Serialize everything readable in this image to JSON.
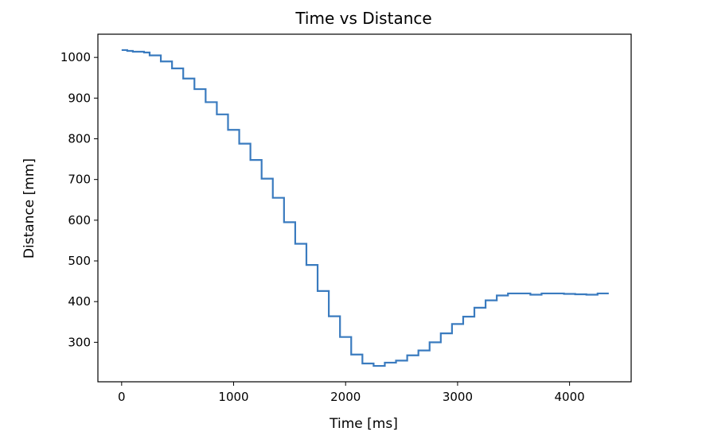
{
  "chart_data": {
    "type": "line",
    "title": "Time vs Distance",
    "xlabel": "Time [ms]",
    "ylabel": "Distance [mm]",
    "xlim": [
      -212,
      4550
    ],
    "ylim": [
      203,
      1057
    ],
    "xticks": [
      0,
      1000,
      2000,
      3000,
      4000
    ],
    "yticks": [
      300,
      400,
      500,
      600,
      700,
      800,
      900,
      1000
    ],
    "grid": false,
    "line_color": "#3a7bbf",
    "series": [
      {
        "drawstyle": "steps-post",
        "x": [
          0,
          50,
          100,
          200,
          250,
          350,
          450,
          550,
          650,
          750,
          850,
          950,
          1050,
          1150,
          1250,
          1350,
          1450,
          1550,
          1650,
          1750,
          1850,
          1950,
          2050,
          2150,
          2250,
          2350,
          2450,
          2550,
          2650,
          2750,
          2850,
          2950,
          3050,
          3150,
          3250,
          3350,
          3450,
          3550,
          3650,
          3750,
          3850,
          3950,
          4050,
          4150,
          4250,
          4350
        ],
        "y": [
          1018,
          1016,
          1014,
          1012,
          1005,
          990,
          973,
          948,
          922,
          890,
          860,
          822,
          788,
          748,
          702,
          655,
          595,
          542,
          490,
          426,
          364,
          313,
          270,
          248,
          242,
          250,
          255,
          268,
          280,
          300,
          322,
          345,
          363,
          385,
          403,
          415,
          420,
          420,
          417,
          420,
          420,
          419,
          418,
          417,
          420,
          420
        ]
      }
    ]
  }
}
